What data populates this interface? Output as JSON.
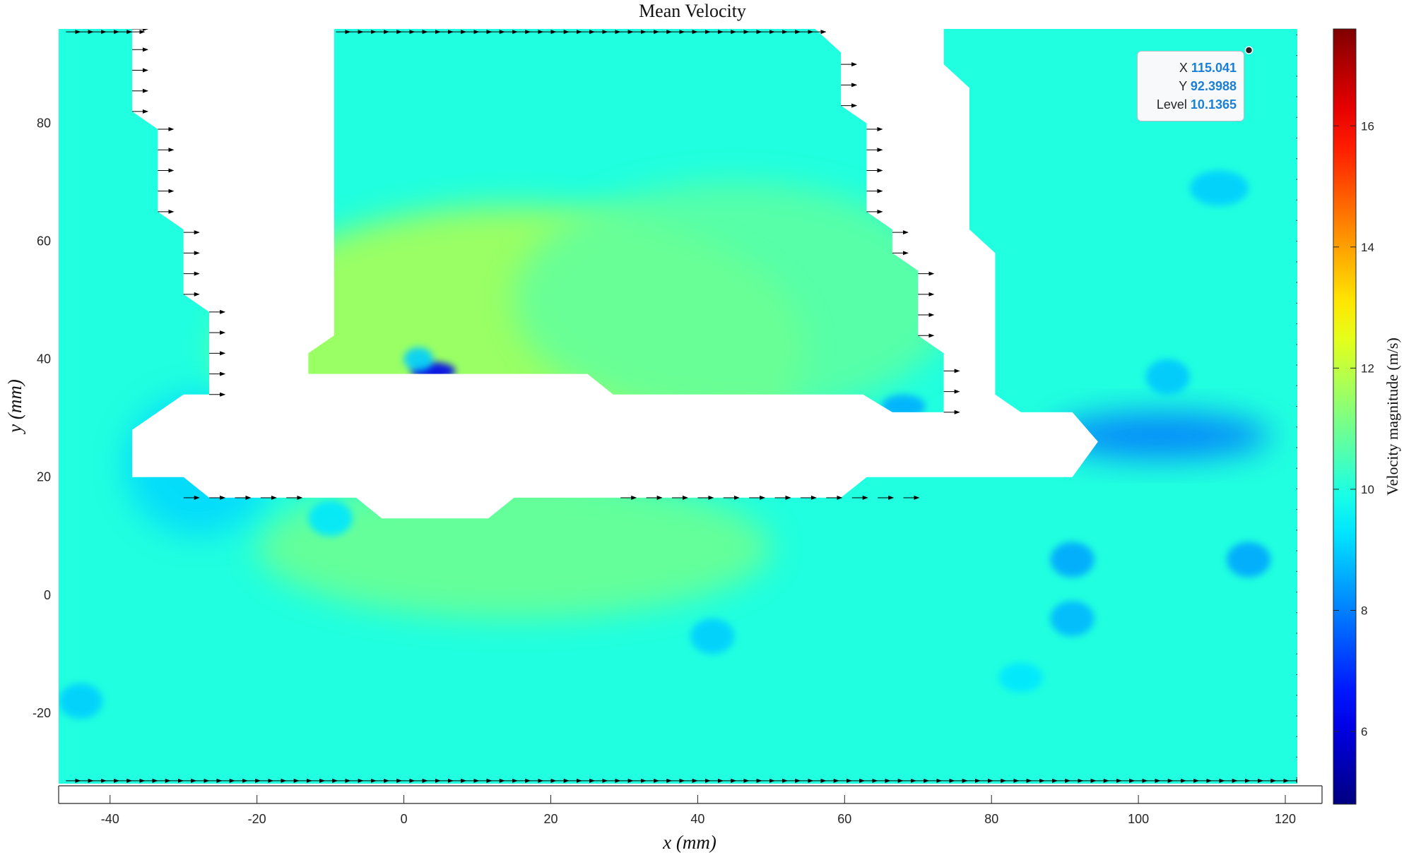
{
  "chart_data": {
    "type": "heatmap",
    "title": "Mean Velocity",
    "xlabel": "x (mm)",
    "ylabel": "y (mm)",
    "colorbar_label": "Velocity magnitude (m/s)",
    "xlim": [
      -47,
      125
    ],
    "ylim": [
      -32,
      96
    ],
    "xticks": [
      -40,
      -20,
      0,
      20,
      40,
      60,
      80,
      100,
      120
    ],
    "yticks": [
      -20,
      0,
      20,
      40,
      60,
      80
    ],
    "xtick_labels": [
      "-40",
      "-20",
      "0",
      "20",
      "40",
      "60",
      "80",
      "100",
      "120"
    ],
    "ytick_labels": [
      "-20",
      "0",
      "20",
      "40",
      "60",
      "80"
    ],
    "clim": [
      4.8,
      17.6
    ],
    "cticks": [
      6,
      8,
      10,
      12,
      14,
      16
    ],
    "ctick_labels": [
      "6",
      "8",
      "10",
      "12",
      "14",
      "16"
    ],
    "colormap": "jet",
    "background_level": 10.0,
    "hotspots": [
      {
        "x": 15,
        "y": 42,
        "rx": 40,
        "ry": 24,
        "level": 11.8
      },
      {
        "x": 15,
        "y": 8,
        "rx": 35,
        "ry": 12,
        "level": 11.0
      },
      {
        "x": 45,
        "y": 50,
        "rx": 30,
        "ry": 20,
        "level": 10.8
      },
      {
        "x": -28,
        "y": 22,
        "rx": 10,
        "ry": 12,
        "level": 9.1
      },
      {
        "x": 103,
        "y": 27,
        "rx": 15,
        "ry": 4,
        "level": 7.9
      },
      {
        "x": 4,
        "y": 38,
        "rx": 3,
        "ry": 1.5,
        "level": 6.2
      },
      {
        "x": 104,
        "y": 37,
        "rx": 3,
        "ry": 3,
        "level": 8.9
      },
      {
        "x": 111,
        "y": 69,
        "rx": 4,
        "ry": 3,
        "level": 9.0
      },
      {
        "x": 91,
        "y": 6,
        "rx": 3,
        "ry": 3,
        "level": 8.5
      },
      {
        "x": 115,
        "y": 6,
        "rx": 3,
        "ry": 3,
        "level": 8.5
      },
      {
        "x": 91,
        "y": -4,
        "rx": 3,
        "ry": 3,
        "level": 8.7
      },
      {
        "x": 42,
        "y": -7,
        "rx": 3,
        "ry": 3,
        "level": 9.0
      },
      {
        "x": -44,
        "y": -18,
        "rx": 3,
        "ry": 3,
        "level": 9.0
      },
      {
        "x": 84,
        "y": -14,
        "rx": 3,
        "ry": 2.5,
        "level": 9.3
      },
      {
        "x": -10,
        "y": 13,
        "rx": 3,
        "ry": 3,
        "level": 9.3
      },
      {
        "x": 68,
        "y": 32,
        "rx": 3,
        "ry": 2,
        "level": 8.6
      },
      {
        "x": 2,
        "y": 40,
        "rx": 2,
        "ry": 2,
        "level": 9.0
      }
    ],
    "masked_regions": [
      {
        "name": "left-obstacle",
        "outline": [
          [
            -37,
            96
          ],
          [
            -9.5,
            96
          ],
          [
            -9.5,
            44
          ],
          [
            -13,
            41
          ],
          [
            -13,
            37.5
          ],
          [
            25,
            37.5
          ],
          [
            28.5,
            34
          ],
          [
            62.5,
            34
          ],
          [
            66.5,
            31
          ],
          [
            73.5,
            31
          ],
          [
            73.5,
            41
          ],
          [
            70,
            44
          ],
          [
            70,
            55
          ],
          [
            66.5,
            58
          ],
          [
            66.5,
            62
          ],
          [
            63,
            65
          ],
          [
            63,
            80
          ],
          [
            59.5,
            83
          ],
          [
            59.5,
            92
          ],
          [
            56,
            96
          ],
          [
            73.5,
            96
          ],
          [
            73.5,
            90
          ],
          [
            77,
            86
          ],
          [
            77,
            62
          ],
          [
            80.5,
            58
          ],
          [
            80.5,
            34
          ],
          [
            84,
            31
          ],
          [
            91,
            31
          ],
          [
            94.5,
            26
          ],
          [
            91,
            20
          ],
          [
            63,
            20
          ],
          [
            59.5,
            16.5
          ],
          [
            15,
            16.5
          ],
          [
            11.5,
            13
          ],
          [
            -3,
            13
          ],
          [
            -6.5,
            16.5
          ],
          [
            -26.5,
            16.5
          ],
          [
            -30,
            20
          ],
          [
            -37,
            20
          ],
          [
            -37,
            24
          ],
          [
            -37,
            28
          ],
          [
            -33.5,
            31
          ],
          [
            -30,
            34
          ],
          [
            -26.5,
            34
          ],
          [
            -26.5,
            48
          ],
          [
            -30,
            51
          ],
          [
            -30,
            62
          ],
          [
            -33.5,
            65
          ],
          [
            -33.5,
            79
          ],
          [
            -37,
            82
          ]
        ]
      }
    ],
    "datatip": {
      "x_label": "X",
      "x_value": "115.041",
      "y_label": "Y",
      "y_value": "92.3988",
      "level_label": "Level",
      "level_value": "10.1365",
      "point_x": 115.041,
      "point_y": 92.3988
    }
  }
}
